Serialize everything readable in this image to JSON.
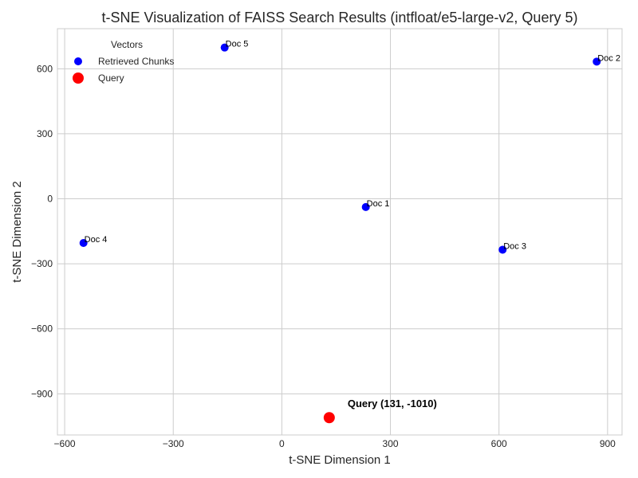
{
  "chart_data": {
    "type": "scatter",
    "title": "t-SNE Visualization of FAISS Search Results (intfloat/e5-large-v2, Query 5)",
    "xlabel": "t-SNE Dimension 1",
    "ylabel": "t-SNE Dimension 2",
    "xlim": [
      -620,
      940
    ],
    "ylim": [
      -1090,
      785
    ],
    "xticks": [
      -600,
      -300,
      0,
      300,
      600,
      900
    ],
    "xtick_labels": [
      "−600",
      "−300",
      "0",
      "300",
      "600",
      "900"
    ],
    "yticks": [
      600,
      300,
      0,
      -300,
      -600,
      -900
    ],
    "ytick_labels": [
      "600",
      "300",
      "0",
      "−300",
      "−600",
      "−900"
    ],
    "grid": true,
    "legend": {
      "title": "Vectors",
      "placement": "top-left",
      "entries": [
        "Retrieved Chunks",
        "Query"
      ]
    },
    "series": [
      {
        "name": "Retrieved Chunks",
        "color": "#0000ff",
        "points": [
          {
            "label": "Doc 1",
            "x": 232,
            "y": -38
          },
          {
            "label": "Doc 2",
            "x": 870,
            "y": 633
          },
          {
            "label": "Doc 3",
            "x": 610,
            "y": -235
          },
          {
            "label": "Doc 4",
            "x": -548,
            "y": -204
          },
          {
            "label": "Doc 5",
            "x": -158,
            "y": 698
          }
        ]
      },
      {
        "name": "Query",
        "color": "#ff0000",
        "points": [
          {
            "label": "Query (131, -1010)",
            "x": 131,
            "y": -1010
          }
        ]
      }
    ]
  }
}
